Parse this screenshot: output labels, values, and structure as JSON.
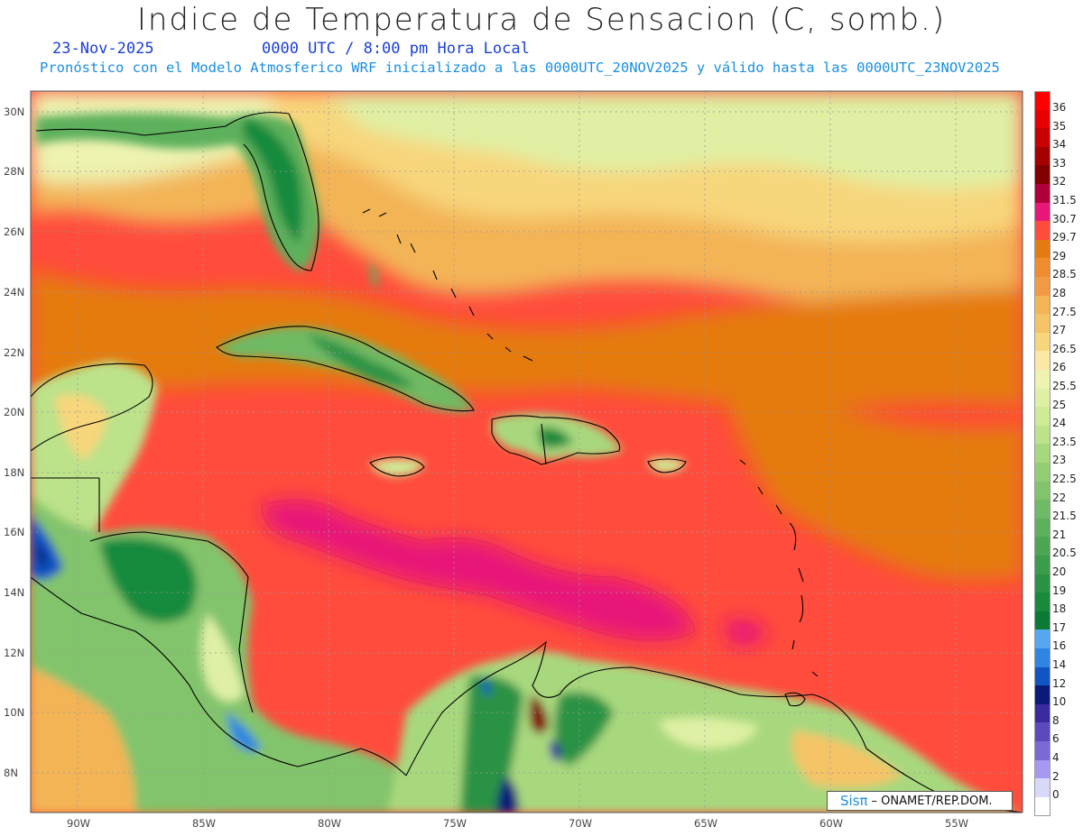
{
  "title": "Indice de Temperatura de Sensacion (C, somb.)",
  "date": "23-Nov-2025",
  "time": "0000 UTC / 8:00 pm Hora Local",
  "forecast_note": "Pronóstico con el Modelo Atmosferico WRF inicializado a las 0000UTC_20NOV2025 y válido hasta las  0000UTC_23NOV2025",
  "credit": {
    "sis": "Sisπ",
    "text": "– ONAMET/REP.DOM."
  },
  "lat_labels": [
    "30N",
    "28N",
    "26N",
    "24N",
    "22N",
    "20N",
    "18N",
    "16N",
    "14N",
    "12N",
    "10N",
    "8N"
  ],
  "lon_labels": [
    "90W",
    "85W",
    "80W",
    "75W",
    "70W",
    "65W",
    "60W",
    "55W"
  ],
  "colorbar": [
    {
      "label": "36",
      "color": "#ff0000"
    },
    {
      "label": "35",
      "color": "#e80000"
    },
    {
      "label": "34",
      "color": "#c80000"
    },
    {
      "label": "33",
      "color": "#a40000"
    },
    {
      "label": "32",
      "color": "#800000"
    },
    {
      "label": "31.5",
      "color": "#b0003a"
    },
    {
      "label": "30.7",
      "color": "#e81878"
    },
    {
      "label": "29.7",
      "color": "#ff4c3c"
    },
    {
      "label": "29",
      "color": "#e57a10"
    },
    {
      "label": "28.5",
      "color": "#ee8c2e"
    },
    {
      "label": "28",
      "color": "#f09a44"
    },
    {
      "label": "27.5",
      "color": "#f3b456"
    },
    {
      "label": "27",
      "color": "#f5c466"
    },
    {
      "label": "26.5",
      "color": "#f8d67c"
    },
    {
      "label": "26",
      "color": "#fbe8a4"
    },
    {
      "label": "25.5",
      "color": "#eef3b0"
    },
    {
      "label": "25",
      "color": "#dff0a4"
    },
    {
      "label": "24",
      "color": "#cfeb95"
    },
    {
      "label": "23.5",
      "color": "#bce28a"
    },
    {
      "label": "23",
      "color": "#a8d87e"
    },
    {
      "label": "22.5",
      "color": "#94ce74"
    },
    {
      "label": "22",
      "color": "#82c46c"
    },
    {
      "label": "21.5",
      "color": "#6fba64"
    },
    {
      "label": "21",
      "color": "#5db05c"
    },
    {
      "label": "20.5",
      "color": "#4ca654"
    },
    {
      "label": "20",
      "color": "#3b9c4c"
    },
    {
      "label": "19",
      "color": "#2a9244"
    },
    {
      "label": "18",
      "color": "#178a3c"
    },
    {
      "label": "17",
      "color": "#0a7a34"
    },
    {
      "label": "16",
      "color": "#55a8f0"
    },
    {
      "label": "14",
      "color": "#2f86e2"
    },
    {
      "label": "12",
      "color": "#1155c4"
    },
    {
      "label": "10",
      "color": "#0a1a7a"
    },
    {
      "label": "8",
      "color": "#3a2aa0"
    },
    {
      "label": "6",
      "color": "#5a4abc"
    },
    {
      "label": "4",
      "color": "#7a6ad4"
    },
    {
      "label": "2",
      "color": "#a59af0"
    },
    {
      "label": "0",
      "color": "#d8d8f8"
    },
    {
      "label": "",
      "color": "#ffffff"
    }
  ]
}
